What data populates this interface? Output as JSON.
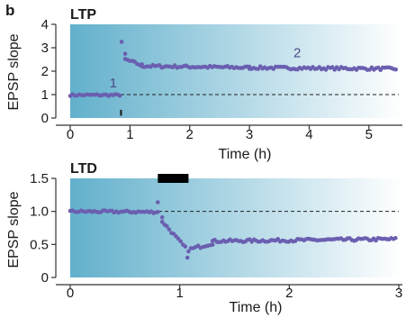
{
  "panel_letter": "b",
  "colors": {
    "bg_start": "#62b0cc",
    "bg_end": "#ffffff",
    "point": "#6b5fb0",
    "axis": "#333333",
    "stim_bar": "#000000"
  },
  "chart_data": [
    {
      "type": "scatter",
      "title": "LTP",
      "xlabel": "Time (h)",
      "ylabel": "EPSP slope",
      "xlim": [
        0,
        5.5
      ],
      "ylim": [
        0,
        4
      ],
      "xticks": [
        0,
        1,
        2,
        3,
        4,
        5
      ],
      "yticks": [
        0,
        1,
        2,
        3,
        4
      ],
      "xtick_labels": [
        "0",
        "1",
        "2",
        "3",
        "4",
        "5"
      ],
      "ytick_labels": [
        "0",
        "1",
        "2",
        "3",
        "4"
      ],
      "baseline": 1.0,
      "annotations": [
        {
          "text": "1",
          "x": 0.72,
          "y": 1.3
        },
        {
          "text": "2",
          "x": 3.8,
          "y": 2.6
        }
      ],
      "marker": {
        "x": 0.85,
        "y_from": 0.1,
        "y_to": 0.35
      },
      "segments": [
        {
          "x_start": 0.0,
          "x_end": 0.83,
          "y_start": 0.98,
          "y_end": 0.98,
          "noise": 0.04
        },
        {
          "x_start": 0.86,
          "x_end": 0.92,
          "y_start": 3.25,
          "y_end": 2.7,
          "noise": 0.05
        },
        {
          "x_start": 0.92,
          "x_end": 1.2,
          "y_start": 2.5,
          "y_end": 2.25,
          "noise": 0.06
        },
        {
          "x_start": 1.2,
          "x_end": 3.0,
          "y_start": 2.22,
          "y_end": 2.15,
          "noise": 0.06
        },
        {
          "x_start": 3.0,
          "x_end": 5.45,
          "y_start": 2.15,
          "y_end": 2.1,
          "noise": 0.06
        }
      ]
    },
    {
      "type": "scatter",
      "title": "LTD",
      "xlabel": "Time (h)",
      "ylabel": "EPSP slope",
      "xlim": [
        0,
        3
      ],
      "ylim": [
        0,
        1.5
      ],
      "xticks": [
        0,
        1,
        2,
        3
      ],
      "yticks": [
        0,
        0.5,
        1.0,
        1.5
      ],
      "xtick_labels": [
        "0",
        "1",
        "2",
        "3"
      ],
      "ytick_labels": [
        "0",
        "0.5",
        "1.0",
        "1.5"
      ],
      "baseline": 1.0,
      "stim_bar": {
        "x_start": 0.8,
        "x_end": 1.08
      },
      "segments": [
        {
          "x_start": 0.0,
          "x_end": 0.8,
          "y_start": 1.0,
          "y_end": 0.99,
          "noise": 0.018
        },
        {
          "x_start": 0.8,
          "x_end": 0.84,
          "y_start": 1.15,
          "y_end": 0.9,
          "noise": 0.02
        },
        {
          "x_start": 0.84,
          "x_end": 1.05,
          "y_start": 0.85,
          "y_end": 0.45,
          "noise": 0.02
        },
        {
          "x_start": 1.08,
          "x_end": 1.3,
          "y_start": 0.42,
          "y_end": 0.52,
          "noise": 0.025
        },
        {
          "x_start": 1.3,
          "x_end": 2.97,
          "y_start": 0.55,
          "y_end": 0.58,
          "noise": 0.022
        }
      ],
      "outliers": [
        {
          "x": 1.07,
          "y": 0.3
        }
      ]
    }
  ]
}
